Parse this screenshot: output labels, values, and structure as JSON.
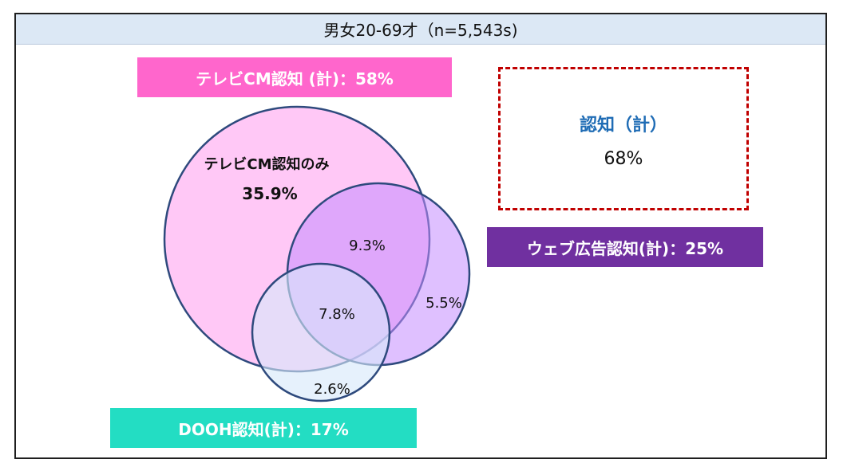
{
  "header": {
    "title": "男女20-69才（n=5,543s)"
  },
  "labels": {
    "tv": "テレビCM認知 (計)：58%",
    "web": "ウェブ広告認知(計)：25%",
    "dooh": "DOOH認知(計)：17%"
  },
  "awareness": {
    "title": "認知（計）",
    "value": "68%"
  },
  "venn": {
    "tv_only_label": "テレビCM認知のみ",
    "tv_only_value": "35.9%",
    "tv_web": "9.3%",
    "web_only": "5.5%",
    "all_three": "7.8%",
    "dooh_only": "2.6%"
  },
  "colors": {
    "tv": "#ff66cc",
    "web": "#7030a0",
    "dooh": "#23ddc3",
    "header_bg": "#dce8f5",
    "accent_dashed": "#c00000",
    "accent_title": "#1f6cb5"
  }
}
